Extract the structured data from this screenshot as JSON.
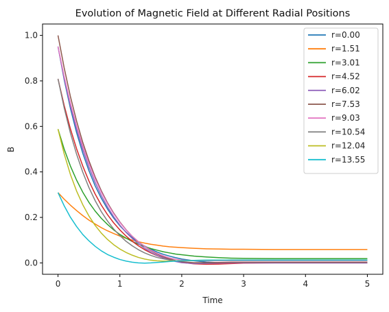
{
  "chart_data": {
    "type": "line",
    "title": "Evolution of Magnetic Field at Different Radial Positions",
    "xlabel": "Time",
    "ylabel": "B",
    "xlim": [
      -0.25,
      5.25
    ],
    "ylim": [
      -0.05,
      1.05
    ],
    "xticks": [
      0,
      1,
      2,
      3,
      4,
      5
    ],
    "yticks": [
      0.0,
      0.2,
      0.4,
      0.6,
      0.8,
      1.0
    ],
    "grid": false,
    "legend_position": "top-right",
    "x": [
      0,
      0.1,
      0.2,
      0.3,
      0.4,
      0.5,
      0.6,
      0.7,
      0.8,
      0.9,
      1.0,
      1.1,
      1.2,
      1.3,
      1.4,
      1.5,
      1.6,
      1.7,
      1.8,
      1.9,
      2.0,
      2.2,
      2.4,
      2.6,
      2.8,
      3.0,
      3.5,
      4.0,
      4.5,
      5.0
    ],
    "series": [
      {
        "name": "r=0.00",
        "color": "#1f77b4",
        "values": [
          0.951,
          0.805,
          0.68,
          0.573,
          0.482,
          0.405,
          0.339,
          0.284,
          0.237,
          0.197,
          0.163,
          0.135,
          0.111,
          0.091,
          0.074,
          0.06,
          0.048,
          0.038,
          0.03,
          0.023,
          0.017,
          0.009,
          0.004,
          0.001,
          0.0,
          0.0,
          0.0,
          0.0,
          0.0,
          0.0
        ]
      },
      {
        "name": "r=1.51",
        "color": "#ff7f0e",
        "values": [
          0.309,
          0.28,
          0.254,
          0.23,
          0.208,
          0.188,
          0.171,
          0.155,
          0.141,
          0.129,
          0.118,
          0.108,
          0.1,
          0.093,
          0.087,
          0.082,
          0.078,
          0.074,
          0.071,
          0.069,
          0.067,
          0.064,
          0.062,
          0.061,
          0.06,
          0.06,
          0.059,
          0.059,
          0.059,
          0.059
        ]
      },
      {
        "name": "r=3.01",
        "color": "#2ca02c",
        "values": [
          0.588,
          0.5,
          0.426,
          0.364,
          0.311,
          0.266,
          0.228,
          0.196,
          0.169,
          0.145,
          0.125,
          0.109,
          0.094,
          0.082,
          0.072,
          0.063,
          0.056,
          0.049,
          0.044,
          0.039,
          0.036,
          0.03,
          0.026,
          0.023,
          0.021,
          0.02,
          0.019,
          0.019,
          0.019,
          0.019
        ]
      },
      {
        "name": "r=4.52",
        "color": "#d62728",
        "values": [
          0.809,
          0.692,
          0.59,
          0.502,
          0.426,
          0.36,
          0.303,
          0.254,
          0.212,
          0.176,
          0.145,
          0.118,
          0.095,
          0.075,
          0.058,
          0.044,
          0.032,
          0.022,
          0.014,
          0.007,
          0.002,
          -0.004,
          -0.006,
          -0.005,
          -0.003,
          -0.001,
          0.0,
          0.0,
          0.0,
          0.0
        ]
      },
      {
        "name": "r=6.02",
        "color": "#9467bd",
        "values": [
          0.951,
          0.812,
          0.692,
          0.588,
          0.499,
          0.421,
          0.354,
          0.296,
          0.246,
          0.203,
          0.166,
          0.134,
          0.107,
          0.084,
          0.064,
          0.047,
          0.033,
          0.022,
          0.013,
          0.006,
          0.001,
          -0.003,
          -0.002,
          -0.001,
          0.0,
          0.0,
          0.0,
          0.0,
          0.0,
          0.0
        ]
      },
      {
        "name": "r=7.53",
        "color": "#8c564b",
        "values": [
          1.0,
          0.857,
          0.732,
          0.624,
          0.53,
          0.449,
          0.378,
          0.317,
          0.264,
          0.219,
          0.18,
          0.146,
          0.117,
          0.093,
          0.072,
          0.054,
          0.039,
          0.027,
          0.018,
          0.01,
          0.005,
          0.001,
          0.001,
          0.002,
          0.003,
          0.003,
          0.003,
          0.003,
          0.003,
          0.003
        ]
      },
      {
        "name": "r=9.03",
        "color": "#e377c2",
        "values": [
          0.951,
          0.819,
          0.703,
          0.602,
          0.514,
          0.437,
          0.37,
          0.311,
          0.26,
          0.216,
          0.178,
          0.145,
          0.117,
          0.093,
          0.073,
          0.056,
          0.042,
          0.031,
          0.022,
          0.016,
          0.012,
          0.01,
          0.01,
          0.01,
          0.01,
          0.01,
          0.01,
          0.01,
          0.01,
          0.01
        ]
      },
      {
        "name": "r=10.54",
        "color": "#7f7f7f",
        "values": [
          0.809,
          0.681,
          0.571,
          0.478,
          0.399,
          0.331,
          0.274,
          0.225,
          0.184,
          0.149,
          0.12,
          0.095,
          0.075,
          0.058,
          0.044,
          0.033,
          0.024,
          0.018,
          0.013,
          0.01,
          0.009,
          0.01,
          0.011,
          0.012,
          0.013,
          0.013,
          0.013,
          0.013,
          0.013,
          0.013
        ]
      },
      {
        "name": "r=12.04",
        "color": "#bcbd22",
        "values": [
          0.588,
          0.479,
          0.389,
          0.316,
          0.256,
          0.206,
          0.165,
          0.131,
          0.103,
          0.08,
          0.061,
          0.046,
          0.034,
          0.024,
          0.017,
          0.012,
          0.009,
          0.008,
          0.008,
          0.009,
          0.01,
          0.011,
          0.012,
          0.012,
          0.012,
          0.012,
          0.012,
          0.012,
          0.012,
          0.012
        ]
      },
      {
        "name": "r=13.55",
        "color": "#17becf",
        "values": [
          0.309,
          0.251,
          0.201,
          0.16,
          0.125,
          0.097,
          0.073,
          0.053,
          0.037,
          0.025,
          0.015,
          0.008,
          0.003,
          0.0,
          -0.001,
          0.0,
          0.002,
          0.004,
          0.006,
          0.008,
          0.009,
          0.011,
          0.012,
          0.012,
          0.012,
          0.012,
          0.012,
          0.012,
          0.012,
          0.012
        ]
      }
    ]
  }
}
